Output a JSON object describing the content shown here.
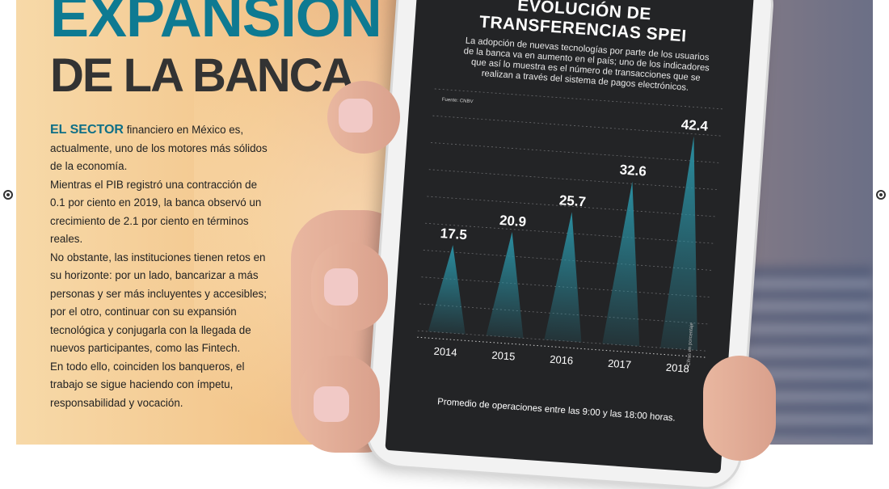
{
  "headline": {
    "line1": "EXPANSIÓN",
    "line2": "DE LA BANCA"
  },
  "article": {
    "lead": "EL SECTOR",
    "paragraphs": [
      " financiero en México es, actualmente, uno de los motores más sólidos de la economía.",
      "Mientras el PIB registró una contracción de 0.1 por ciento en 2019, la banca observó un crecimiento de 2.1 por ciento en términos reales.",
      "No obstante, las instituciones tienen retos en su horizonte: por un lado, bancarizar a más personas y ser más incluyentes y accesibles; por el otro, continuar con su expansión tecnológica y conjugarla con la llegada de nuevos participantes, como las Fintech.",
      "En todo ello, coinciden los banqueros, el trabajo se sigue haciendo con ímpetu, responsabilidad y vocación."
    ]
  },
  "chart_data": {
    "type": "area",
    "title_line1": "EVOLUCIÓN DE",
    "title_line2": "TRANSFERENCIAS SPEI",
    "subtitle": "La adopción de nuevas tecnologías por parte de los usuarios de la banca va en aumento en el país; uno de los indicadores que así lo muestra es el número de transacciones que se realizan a través del sistema de pagos electrónicos.",
    "source": "Fuente: CNBV",
    "side_note": "Cifras en porcentaje",
    "footer": "Promedio de operaciones entre las 9:00 y las 18:00 horas.",
    "categories": [
      "2014",
      "2015",
      "2016",
      "2017",
      "2018"
    ],
    "values": [
      17.5,
      20.9,
      25.7,
      32.6,
      42.4
    ],
    "value_labels": [
      "17.5",
      "20.9",
      "25.7",
      "32.6",
      "42.4"
    ],
    "ylim": [
      0,
      45
    ],
    "colors": {
      "accent": "#2a8ea0",
      "background": "#232426",
      "text": "#ffffff"
    }
  }
}
